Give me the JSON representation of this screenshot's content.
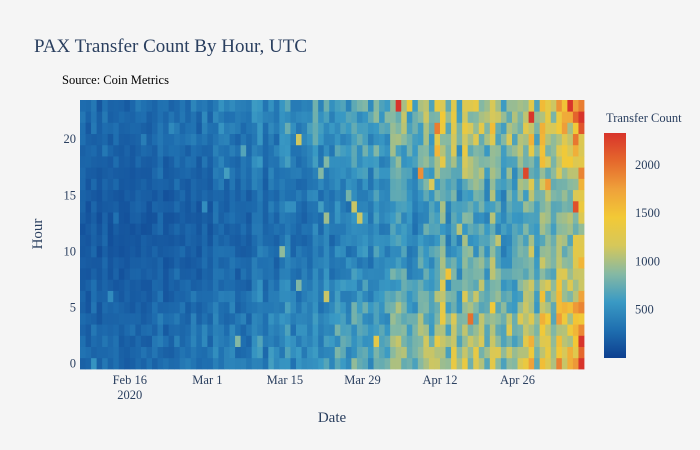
{
  "chart_data": {
    "type": "heatmap",
    "title": "PAX Transfer Count By Hour, UTC",
    "subtitle": "Source: Coin Metrics",
    "xlabel": "Date",
    "ylabel": "Hour",
    "x_range": [
      "2020-02-07",
      "2020-05-08"
    ],
    "x_ticks": [
      {
        "date": "2020-02-16",
        "label": "Feb 16",
        "sublabel": "2020"
      },
      {
        "date": "2020-03-01",
        "label": "Mar 1",
        "sublabel": ""
      },
      {
        "date": "2020-03-15",
        "label": "Mar 15",
        "sublabel": ""
      },
      {
        "date": "2020-03-29",
        "label": "Mar 29",
        "sublabel": ""
      },
      {
        "date": "2020-04-12",
        "label": "Apr 12",
        "sublabel": ""
      },
      {
        "date": "2020-04-26",
        "label": "Apr 26",
        "sublabel": ""
      }
    ],
    "y_range": [
      0,
      23
    ],
    "y_ticks": [
      0,
      5,
      10,
      15,
      20
    ],
    "colorbar": {
      "title": "Transfer Count",
      "range": [
        0,
        2330
      ],
      "ticks": [
        500,
        1000,
        1500,
        2000
      ],
      "colors": [
        "#0d3f8f",
        "#1f6fb0",
        "#3a9ac4",
        "#86b9a3",
        "#d6c85a",
        "#f2c936",
        "#efa13a",
        "#e5682c",
        "#d8342b"
      ]
    },
    "daily_level_estimate": {
      "dates": [
        "2020-02-07",
        "2020-02-22",
        "2020-03-08",
        "2020-03-22",
        "2020-04-05",
        "2020-04-12",
        "2020-04-20",
        "2020-04-26",
        "2020-05-01",
        "2020-05-04",
        "2020-05-07"
      ],
      "typical_count": [
        250,
        280,
        400,
        600,
        800,
        1000,
        1000,
        1050,
        1150,
        1450,
        1700
      ]
    }
  }
}
